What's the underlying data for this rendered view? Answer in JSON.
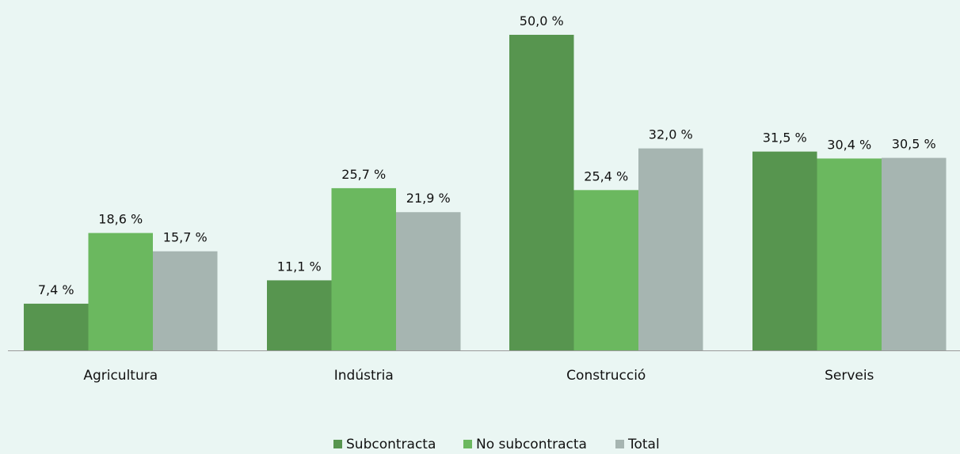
{
  "colors": {
    "background": "#eaf6f3",
    "subcontracta": "#57954f",
    "no_subcontracta": "#6bb85f",
    "total": "#a6b5b1",
    "axis": "#9a9a9a"
  },
  "chart_data": {
    "type": "bar",
    "title": "",
    "xlabel": "",
    "ylabel": "",
    "ylim": [
      0,
      50
    ],
    "grid": false,
    "legend_position": "bottom",
    "categories": [
      "Agricultura",
      "Indústria",
      "Construcció",
      "Serveis"
    ],
    "series": [
      {
        "name": "Subcontracta",
        "color": "#57954f",
        "values": [
          7.4,
          11.1,
          50.0,
          31.5
        ],
        "labels": [
          "7,4 %",
          "11,1 %",
          "50,0 %",
          "31,5 %"
        ]
      },
      {
        "name": "No subcontracta",
        "color": "#6bb85f",
        "values": [
          18.6,
          25.7,
          25.4,
          30.4
        ],
        "labels": [
          "18,6 %",
          "25,7 %",
          "25,4 %",
          "30,4 %"
        ]
      },
      {
        "name": "Total",
        "color": "#a6b5b1",
        "values": [
          15.7,
          21.9,
          32.0,
          30.5
        ],
        "labels": [
          "15,7 %",
          "21,9 %",
          "32,0 %",
          "30,5 %"
        ]
      }
    ]
  }
}
